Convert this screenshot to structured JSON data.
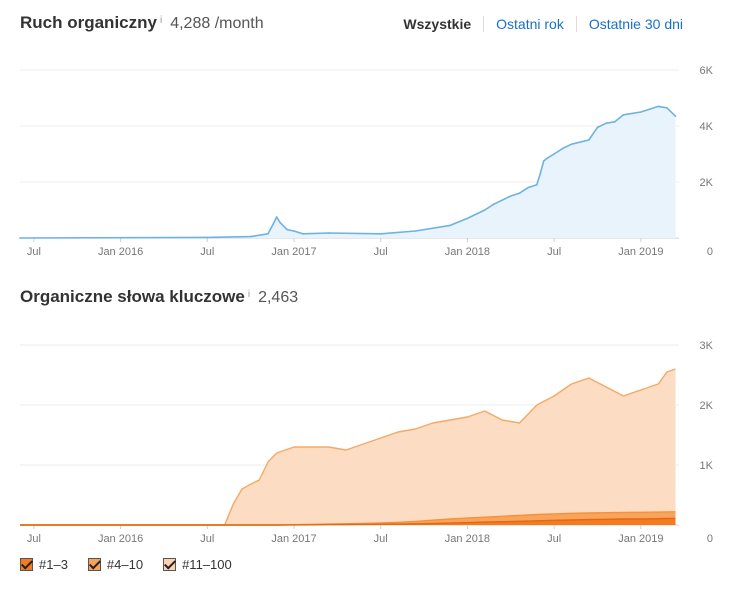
{
  "traffic": {
    "title": "Ruch organiczny",
    "info": "i",
    "value": "4,288 /month"
  },
  "tabs": [
    {
      "label": "Wszystkie",
      "active": true
    },
    {
      "label": "Ostatni rok",
      "active": false
    },
    {
      "label": "Ostatnie 30 dni",
      "active": false
    }
  ],
  "keywords": {
    "title": "Organiczne słowa kluczowe",
    "info": "i",
    "value": "2,463"
  },
  "legend": [
    {
      "label": "#1–3",
      "color": "#f47b20"
    },
    {
      "label": "#4–10",
      "color": "#f7a25a"
    },
    {
      "label": "#11–100",
      "color": "#fcd3b0"
    }
  ],
  "chart_data": [
    {
      "type": "line",
      "name": "Ruch organiczny",
      "color": "#6cb3e2",
      "fill": "#e9f3fc",
      "xlim": [
        2015.42,
        2019.22
      ],
      "ylim": [
        0,
        6000
      ],
      "x_ticks": [
        {
          "t": 2015.5,
          "label": "Jul"
        },
        {
          "t": 2016.0,
          "label": "Jan 2016"
        },
        {
          "t": 2016.5,
          "label": "Jul"
        },
        {
          "t": 2017.0,
          "label": "Jan 2017"
        },
        {
          "t": 2017.5,
          "label": "Jul"
        },
        {
          "t": 2018.0,
          "label": "Jan 2018"
        },
        {
          "t": 2018.5,
          "label": "Jul"
        },
        {
          "t": 2019.0,
          "label": "Jan 2019"
        }
      ],
      "y_ticks": [
        {
          "v": 6000,
          "label": "6K"
        },
        {
          "v": 4000,
          "label": "4K"
        },
        {
          "v": 2000,
          "label": "2K"
        },
        {
          "v": 0,
          "label": "0"
        }
      ],
      "x": [
        2015.42,
        2016.5,
        2016.75,
        2016.85,
        2016.88,
        2016.9,
        2016.92,
        2016.96,
        2017.0,
        2017.05,
        2017.2,
        2017.5,
        2017.7,
        2017.9,
        2018.0,
        2018.1,
        2018.15,
        2018.2,
        2018.25,
        2018.3,
        2018.35,
        2018.4,
        2018.42,
        2018.44,
        2018.46,
        2018.5,
        2018.55,
        2018.6,
        2018.7,
        2018.75,
        2018.8,
        2018.85,
        2018.9,
        2019.0,
        2019.05,
        2019.1,
        2019.15,
        2019.2
      ],
      "y": [
        0,
        20,
        50,
        150,
        500,
        750,
        550,
        300,
        250,
        150,
        180,
        150,
        250,
        450,
        700,
        1000,
        1200,
        1350,
        1500,
        1600,
        1800,
        1900,
        2300,
        2750,
        2850,
        3000,
        3200,
        3350,
        3500,
        3950,
        4100,
        4150,
        4400,
        4500,
        4600,
        4700,
        4650,
        4350
      ]
    },
    {
      "type": "area",
      "name": "Organiczne słowa kluczowe",
      "xlim": [
        2015.42,
        2019.22
      ],
      "ylim": [
        0,
        3000
      ],
      "x_ticks": [
        {
          "t": 2015.5,
          "label": "Jul"
        },
        {
          "t": 2016.0,
          "label": "Jan 2016"
        },
        {
          "t": 2016.5,
          "label": "Jul"
        },
        {
          "t": 2017.0,
          "label": "Jan 2017"
        },
        {
          "t": 2017.5,
          "label": "Jul"
        },
        {
          "t": 2018.0,
          "label": "Jan 2018"
        },
        {
          "t": 2018.5,
          "label": "Jul"
        },
        {
          "t": 2019.0,
          "label": "Jan 2019"
        }
      ],
      "y_ticks": [
        {
          "v": 3000,
          "label": "3K"
        },
        {
          "v": 2000,
          "label": "2K"
        },
        {
          "v": 1000,
          "label": "1K"
        },
        {
          "v": 0,
          "label": "0"
        }
      ],
      "x": [
        2015.42,
        2016.6,
        2016.65,
        2016.7,
        2016.75,
        2016.8,
        2016.85,
        2016.9,
        2017.0,
        2017.1,
        2017.2,
        2017.3,
        2017.4,
        2017.5,
        2017.6,
        2017.7,
        2017.8,
        2017.9,
        2018.0,
        2018.1,
        2018.2,
        2018.3,
        2018.4,
        2018.5,
        2018.6,
        2018.7,
        2018.8,
        2018.9,
        2019.0,
        2019.1,
        2019.15,
        2019.2
      ],
      "series": [
        {
          "name": "#11–100",
          "color": "#fcdcc3",
          "stroke": "#f5a965",
          "values": [
            0,
            0,
            350,
            600,
            680,
            750,
            1050,
            1200,
            1300,
            1300,
            1300,
            1250,
            1350,
            1450,
            1550,
            1600,
            1700,
            1750,
            1800,
            1900,
            1750,
            1700,
            2000,
            2150,
            2350,
            2450,
            2300,
            2150,
            2250,
            2350,
            2550,
            2600
          ]
        },
        {
          "name": "#4–10",
          "color": "#f9a45c",
          "stroke": "#f7903a",
          "values": [
            0,
            0,
            0,
            0,
            0,
            0,
            0,
            0,
            5,
            10,
            15,
            20,
            25,
            35,
            45,
            60,
            80,
            100,
            115,
            130,
            145,
            160,
            175,
            185,
            195,
            200,
            205,
            210,
            212,
            215,
            218,
            220
          ]
        },
        {
          "name": "#1–3",
          "color": "#f47b20",
          "stroke": "#e5670e",
          "values": [
            0,
            0,
            0,
            0,
            0,
            0,
            0,
            0,
            2,
            4,
            6,
            8,
            10,
            12,
            15,
            20,
            25,
            32,
            40,
            48,
            55,
            62,
            70,
            78,
            85,
            90,
            95,
            100,
            102,
            105,
            108,
            110
          ]
        }
      ]
    }
  ]
}
